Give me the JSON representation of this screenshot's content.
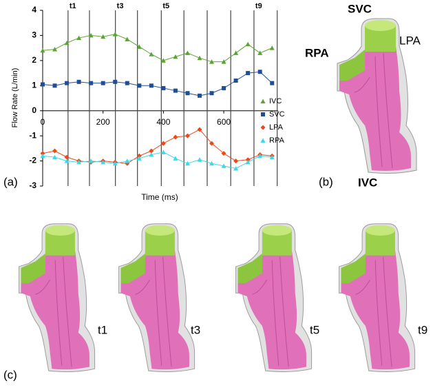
{
  "chart_data": {
    "type": "line",
    "x_label": "Time (ms)",
    "y_label": "Flow Rate (L/min)",
    "xlim": [
      0,
      780
    ],
    "ylim": [
      -3,
      4
    ],
    "xticks": [
      0,
      200,
      400,
      600
    ],
    "yticks": [
      -3,
      -2,
      -1,
      0,
      1,
      2,
      3,
      4
    ],
    "x": [
      0,
      40,
      80,
      120,
      160,
      200,
      240,
      280,
      320,
      360,
      400,
      440,
      480,
      520,
      560,
      600,
      640,
      680,
      720,
      760
    ],
    "series": [
      {
        "name": "IVC",
        "color": "#5aa532",
        "marker": "triangle",
        "values": [
          2.4,
          2.45,
          2.7,
          2.9,
          3.0,
          2.95,
          3.05,
          2.85,
          2.55,
          2.25,
          2.0,
          2.15,
          2.3,
          2.1,
          1.95,
          1.95,
          2.3,
          2.65,
          2.3,
          2.5
        ]
      },
      {
        "name": "SVC",
        "color": "#1f4e96",
        "marker": "square",
        "values": [
          1.05,
          1.0,
          1.1,
          1.15,
          1.1,
          1.1,
          1.15,
          1.1,
          1.0,
          1.0,
          0.9,
          0.8,
          0.7,
          0.6,
          0.7,
          0.9,
          1.2,
          1.5,
          1.55,
          1.1
        ]
      },
      {
        "name": "LPA",
        "color": "#e8491d",
        "marker": "diamond",
        "values": [
          -1.7,
          -1.6,
          -1.85,
          -2.0,
          -2.05,
          -2.0,
          -2.05,
          -2.1,
          -1.8,
          -1.6,
          -1.3,
          -1.05,
          -1.0,
          -0.75,
          -1.3,
          -1.7,
          -2.0,
          -1.95,
          -1.75,
          -1.8
        ]
      },
      {
        "name": "RPA",
        "color": "#40d8e8",
        "marker": "triangle",
        "values": [
          -1.8,
          -1.85,
          -2.0,
          -2.05,
          -2.0,
          -2.05,
          -2.1,
          -2.0,
          -1.9,
          -1.75,
          -1.65,
          -1.9,
          -2.1,
          -1.95,
          -2.1,
          -2.2,
          -2.3,
          -2.05,
          -1.8,
          -1.85
        ]
      }
    ],
    "markers": [
      84,
      155,
      241,
      314,
      393,
      468,
      545,
      623,
      700,
      777
    ],
    "marker_labels": [
      "t1",
      null,
      "t3",
      null,
      "t5",
      null,
      null,
      null,
      "t9",
      null
    ],
    "legend": "right"
  },
  "figure": {
    "panel_labels": [
      "(a)",
      "(b)",
      "(c)"
    ],
    "vessel_labels": [
      "SVC",
      "LPA",
      "RPA",
      "IVC"
    ],
    "frame_labels": [
      "t1",
      "t3",
      "t5",
      "t9"
    ]
  }
}
